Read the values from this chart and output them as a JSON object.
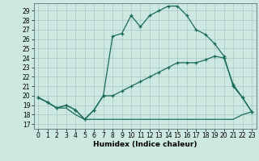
{
  "xlabel": "Humidex (Indice chaleur)",
  "bg_color": "#cce8e0",
  "line_color": "#1a6b5a",
  "xlim": [
    -0.5,
    23.5
  ],
  "ylim": [
    16.5,
    29.8
  ],
  "yticks": [
    17,
    18,
    19,
    20,
    21,
    22,
    23,
    24,
    25,
    26,
    27,
    28,
    29
  ],
  "xticks": [
    0,
    1,
    2,
    3,
    4,
    5,
    6,
    7,
    8,
    9,
    10,
    11,
    12,
    13,
    14,
    15,
    16,
    17,
    18,
    19,
    20,
    21,
    22,
    23
  ],
  "curve1_x": [
    0,
    1,
    2,
    3,
    4,
    5,
    6,
    7,
    8,
    9,
    10,
    11,
    12,
    13,
    14,
    15,
    16,
    17,
    18,
    19,
    20,
    21,
    22,
    23
  ],
  "curve1_y": [
    19.8,
    19.3,
    18.7,
    19.0,
    18.5,
    17.5,
    18.5,
    20.0,
    26.3,
    26.6,
    28.5,
    27.3,
    28.5,
    29.0,
    29.5,
    29.5,
    28.5,
    27.0,
    26.5,
    25.5,
    24.2,
    21.0,
    19.8,
    18.3
  ],
  "curve2_x": [
    0,
    1,
    2,
    3,
    4,
    5,
    6,
    7,
    8,
    9,
    10,
    11,
    12,
    13,
    14,
    15,
    16,
    17,
    18,
    19,
    20,
    21,
    22,
    23
  ],
  "curve2_y": [
    19.8,
    19.3,
    18.7,
    19.0,
    18.5,
    17.5,
    18.5,
    20.0,
    20.0,
    20.5,
    21.0,
    21.5,
    22.0,
    22.5,
    23.0,
    23.5,
    23.5,
    23.5,
    23.8,
    24.2,
    24.0,
    21.2,
    19.8,
    18.3
  ],
  "curve3_x": [
    0,
    1,
    2,
    3,
    4,
    5,
    6,
    7,
    8,
    9,
    10,
    11,
    12,
    13,
    14,
    15,
    16,
    17,
    18,
    19,
    20,
    21,
    22,
    23
  ],
  "curve3_y": [
    19.8,
    19.3,
    18.7,
    18.7,
    18.0,
    17.5,
    17.5,
    17.5,
    17.5,
    17.5,
    17.5,
    17.5,
    17.5,
    17.5,
    17.5,
    17.5,
    17.5,
    17.5,
    17.5,
    17.5,
    17.5,
    17.5,
    18.0,
    18.3
  ]
}
